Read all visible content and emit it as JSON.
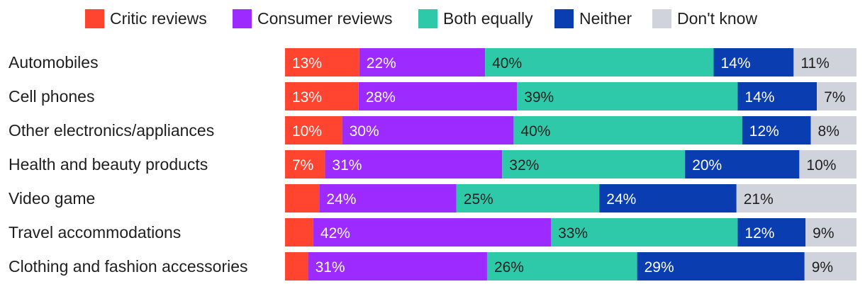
{
  "chart_data": {
    "type": "bar",
    "orientation": "horizontal",
    "stacked": true,
    "normalized": true,
    "title": "",
    "xlabel": "",
    "ylabel": "",
    "legend_position": "top",
    "categories": [
      "Automobiles",
      "Cell phones",
      "Other electronics/appliances",
      "Health and beauty products",
      "Video game",
      "Travel accommodations",
      "Clothing and fashion accessories"
    ],
    "series": [
      {
        "name": "Critic reviews",
        "color": "#ff4530",
        "text_color": "#ffffff",
        "values": [
          13,
          13,
          10,
          7,
          6,
          5,
          4
        ],
        "labels": [
          "13%",
          "13%",
          "10%",
          "7%",
          "",
          "",
          ""
        ]
      },
      {
        "name": "Consumer reviews",
        "color": "#9d2bff",
        "text_color": "#ffffff",
        "values": [
          22,
          28,
          30,
          31,
          24,
          42,
          31
        ],
        "labels": [
          "22%",
          "28%",
          "30%",
          "31%",
          "24%",
          "42%",
          "31%"
        ]
      },
      {
        "name": "Both equally",
        "color": "#2ec9a8",
        "text_color": "#1f1f1f",
        "values": [
          40,
          39,
          40,
          32,
          25,
          33,
          26
        ],
        "labels": [
          "40%",
          "39%",
          "40%",
          "32%",
          "25%",
          "33%",
          "26%"
        ]
      },
      {
        "name": "Neither",
        "color": "#0a3db0",
        "text_color": "#ffffff",
        "values": [
          14,
          14,
          12,
          20,
          24,
          12,
          29
        ],
        "labels": [
          "14%",
          "14%",
          "12%",
          "20%",
          "24%",
          "12%",
          "29%"
        ]
      },
      {
        "name": "Don't know",
        "color": "#d0d3dc",
        "text_color": "#1f1f1f",
        "values": [
          11,
          7,
          8,
          10,
          21,
          9,
          9
        ],
        "labels": [
          "11%",
          "7%",
          "8%",
          "10%",
          "21%",
          "9%",
          "9%"
        ]
      }
    ]
  }
}
